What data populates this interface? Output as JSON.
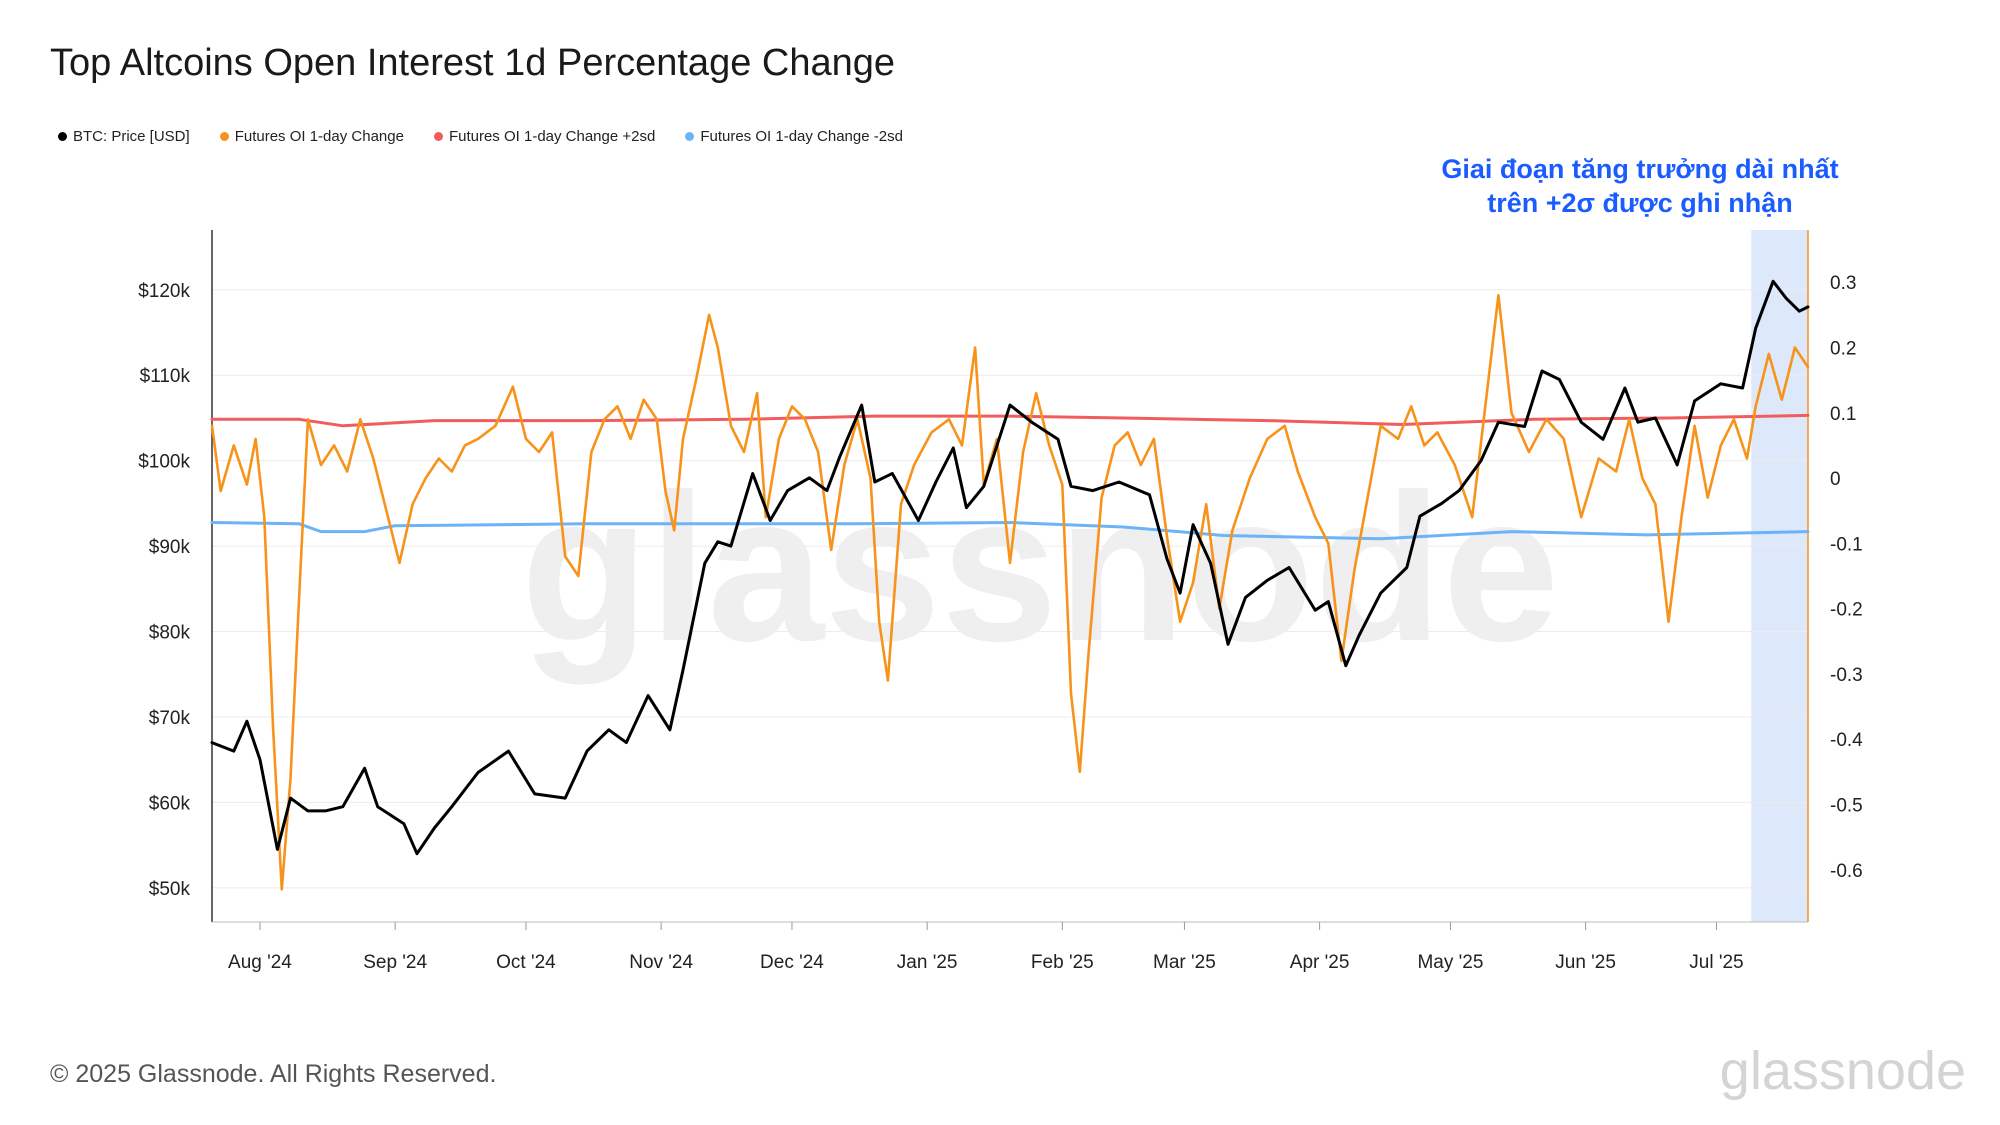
{
  "title": "Top Altcoins Open Interest 1d Percentage Change",
  "legend": [
    {
      "label": "BTC: Price [USD]",
      "color": "#000000"
    },
    {
      "label": "Futures OI 1-day Change",
      "color": "#f7931a"
    },
    {
      "label": "Futures OI 1-day Change +2sd",
      "color": "#f25c5c"
    },
    {
      "label": "Futures OI 1-day Change -2sd",
      "color": "#6cb4f7"
    }
  ],
  "annotation": {
    "line1": "Giai đoạn tăng trưởng dài nhất",
    "line2": "trên +2σ được ghi nhận"
  },
  "footer": "© 2025 Glassnode. All Rights Reserved.",
  "brand": "glassnode",
  "watermark": "glassnode",
  "chart_data": {
    "type": "line",
    "x_axis": {
      "ticks": [
        "Aug '24",
        "Sep '24",
        "Oct '24",
        "Nov '24",
        "Dec '24",
        "Jan '25",
        "Feb '25",
        "Mar '25",
        "Apr '25",
        "May '25",
        "Jun '25",
        "Jul '25"
      ],
      "range": [
        "2024-07-21",
        "2025-07-22"
      ]
    },
    "y_left": {
      "ticks": [
        "$50k",
        "$60k",
        "$70k",
        "$80k",
        "$90k",
        "$100k",
        "$110k",
        "$120k"
      ],
      "tick_values": [
        50000,
        60000,
        70000,
        80000,
        90000,
        100000,
        110000,
        120000
      ],
      "range": [
        46000,
        127000
      ]
    },
    "y_right": {
      "ticks": [
        "0.3",
        "0.2",
        "0.1",
        "0",
        "-0.1",
        "-0.2",
        "-0.3",
        "-0.4",
        "-0.5",
        "-0.6"
      ],
      "tick_values": [
        0.3,
        0.2,
        0.1,
        0,
        -0.1,
        -0.2,
        -0.3,
        -0.4,
        -0.5,
        -0.6
      ],
      "range": [
        -0.68,
        0.38
      ]
    },
    "highlight_region": {
      "from": "2025-07-09",
      "to": "2025-07-22",
      "color": "#dde8fb"
    },
    "grid": "horizontal",
    "series": [
      {
        "name": "BTC: Price [USD]",
        "axis": "left",
        "color": "#000000",
        "points": [
          [
            "2024-07-21",
            67000
          ],
          [
            "2024-07-26",
            66000
          ],
          [
            "2024-07-29",
            69500
          ],
          [
            "2024-08-01",
            65000
          ],
          [
            "2024-08-05",
            54500
          ],
          [
            "2024-08-08",
            60500
          ],
          [
            "2024-08-12",
            59000
          ],
          [
            "2024-08-16",
            59000
          ],
          [
            "2024-08-20",
            59500
          ],
          [
            "2024-08-25",
            64000
          ],
          [
            "2024-08-28",
            59500
          ],
          [
            "2024-09-03",
            57500
          ],
          [
            "2024-09-06",
            54000
          ],
          [
            "2024-09-10",
            57000
          ],
          [
            "2024-09-14",
            59500
          ],
          [
            "2024-09-20",
            63500
          ],
          [
            "2024-09-27",
            66000
          ],
          [
            "2024-10-03",
            61000
          ],
          [
            "2024-10-10",
            60500
          ],
          [
            "2024-10-15",
            66000
          ],
          [
            "2024-10-20",
            68500
          ],
          [
            "2024-10-24",
            67000
          ],
          [
            "2024-10-29",
            72500
          ],
          [
            "2024-11-03",
            68500
          ],
          [
            "2024-11-06",
            75500
          ],
          [
            "2024-11-11",
            88000
          ],
          [
            "2024-11-14",
            90500
          ],
          [
            "2024-11-17",
            90000
          ],
          [
            "2024-11-22",
            98500
          ],
          [
            "2024-11-26",
            93000
          ],
          [
            "2024-11-30",
            96500
          ],
          [
            "2024-12-05",
            98000
          ],
          [
            "2024-12-09",
            96500
          ],
          [
            "2024-12-12",
            100500
          ],
          [
            "2024-12-17",
            106500
          ],
          [
            "2024-12-20",
            97500
          ],
          [
            "2024-12-24",
            98500
          ],
          [
            "2024-12-30",
            93000
          ],
          [
            "2025-01-03",
            97500
          ],
          [
            "2025-01-07",
            101500
          ],
          [
            "2025-01-10",
            94500
          ],
          [
            "2025-01-14",
            97000
          ],
          [
            "2025-01-20",
            106500
          ],
          [
            "2025-01-25",
            104500
          ],
          [
            "2025-01-31",
            102500
          ],
          [
            "2025-02-03",
            97000
          ],
          [
            "2025-02-08",
            96500
          ],
          [
            "2025-02-14",
            97500
          ],
          [
            "2025-02-21",
            96000
          ],
          [
            "2025-02-25",
            88500
          ],
          [
            "2025-02-28",
            84500
          ],
          [
            "2025-03-03",
            92500
          ],
          [
            "2025-03-07",
            88000
          ],
          [
            "2025-03-11",
            78500
          ],
          [
            "2025-03-15",
            84000
          ],
          [
            "2025-03-20",
            86000
          ],
          [
            "2025-03-25",
            87500
          ],
          [
            "2025-03-31",
            82500
          ],
          [
            "2025-04-03",
            83500
          ],
          [
            "2025-04-07",
            76000
          ],
          [
            "2025-04-10",
            79500
          ],
          [
            "2025-04-15",
            84500
          ],
          [
            "2025-04-21",
            87500
          ],
          [
            "2025-04-24",
            93500
          ],
          [
            "2025-04-29",
            95000
          ],
          [
            "2025-05-03",
            96500
          ],
          [
            "2025-05-08",
            100000
          ],
          [
            "2025-05-12",
            104500
          ],
          [
            "2025-05-18",
            104000
          ],
          [
            "2025-05-22",
            110500
          ],
          [
            "2025-05-26",
            109500
          ],
          [
            "2025-05-31",
            104500
          ],
          [
            "2025-06-05",
            102500
          ],
          [
            "2025-06-10",
            108500
          ],
          [
            "2025-06-13",
            104500
          ],
          [
            "2025-06-17",
            105000
          ],
          [
            "2025-06-22",
            99500
          ],
          [
            "2025-06-26",
            107000
          ],
          [
            "2025-07-02",
            109000
          ],
          [
            "2025-07-07",
            108500
          ],
          [
            "2025-07-10",
            115500
          ],
          [
            "2025-07-14",
            121000
          ],
          [
            "2025-07-17",
            119000
          ],
          [
            "2025-07-20",
            117500
          ],
          [
            "2025-07-22",
            118000
          ]
        ]
      },
      {
        "name": "Futures OI 1-day Change",
        "axis": "right",
        "color": "#f7931a",
        "points": [
          [
            "2024-07-21",
            0.08
          ],
          [
            "2024-07-23",
            -0.02
          ],
          [
            "2024-07-26",
            0.05
          ],
          [
            "2024-07-29",
            -0.01
          ],
          [
            "2024-07-31",
            0.06
          ],
          [
            "2024-08-02",
            -0.06
          ],
          [
            "2024-08-04",
            -0.38
          ],
          [
            "2024-08-06",
            -0.63
          ],
          [
            "2024-08-08",
            -0.46
          ],
          [
            "2024-08-10",
            -0.18
          ],
          [
            "2024-08-12",
            0.09
          ],
          [
            "2024-08-15",
            0.02
          ],
          [
            "2024-08-18",
            0.05
          ],
          [
            "2024-08-21",
            0.01
          ],
          [
            "2024-08-24",
            0.09
          ],
          [
            "2024-08-27",
            0.03
          ],
          [
            "2024-08-30",
            -0.05
          ],
          [
            "2024-09-02",
            -0.13
          ],
          [
            "2024-09-05",
            -0.04
          ],
          [
            "2024-09-08",
            0.0
          ],
          [
            "2024-09-11",
            0.03
          ],
          [
            "2024-09-14",
            0.01
          ],
          [
            "2024-09-17",
            0.05
          ],
          [
            "2024-09-20",
            0.06
          ],
          [
            "2024-09-24",
            0.08
          ],
          [
            "2024-09-28",
            0.14
          ],
          [
            "2024-10-01",
            0.06
          ],
          [
            "2024-10-04",
            0.04
          ],
          [
            "2024-10-07",
            0.07
          ],
          [
            "2024-10-10",
            -0.12
          ],
          [
            "2024-10-13",
            -0.15
          ],
          [
            "2024-10-16",
            0.04
          ],
          [
            "2024-10-19",
            0.09
          ],
          [
            "2024-10-22",
            0.11
          ],
          [
            "2024-10-25",
            0.06
          ],
          [
            "2024-10-28",
            0.12
          ],
          [
            "2024-10-31",
            0.09
          ],
          [
            "2024-11-02",
            -0.02
          ],
          [
            "2024-11-04",
            -0.08
          ],
          [
            "2024-11-06",
            0.06
          ],
          [
            "2024-11-09",
            0.15
          ],
          [
            "2024-11-12",
            0.25
          ],
          [
            "2024-11-14",
            0.2
          ],
          [
            "2024-11-17",
            0.08
          ],
          [
            "2024-11-20",
            0.04
          ],
          [
            "2024-11-23",
            0.13
          ],
          [
            "2024-11-25",
            -0.06
          ],
          [
            "2024-11-28",
            0.06
          ],
          [
            "2024-12-01",
            0.11
          ],
          [
            "2024-12-04",
            0.09
          ],
          [
            "2024-12-07",
            0.04
          ],
          [
            "2024-12-10",
            -0.11
          ],
          [
            "2024-12-13",
            0.02
          ],
          [
            "2024-12-16",
            0.09
          ],
          [
            "2024-12-19",
            0.0
          ],
          [
            "2024-12-21",
            -0.22
          ],
          [
            "2024-12-23",
            -0.31
          ],
          [
            "2024-12-26",
            -0.04
          ],
          [
            "2024-12-29",
            0.02
          ],
          [
            "2025-01-02",
            0.07
          ],
          [
            "2025-01-06",
            0.09
          ],
          [
            "2025-01-09",
            0.05
          ],
          [
            "2025-01-12",
            0.2
          ],
          [
            "2025-01-14",
            -0.01
          ],
          [
            "2025-01-17",
            0.06
          ],
          [
            "2025-01-20",
            -0.13
          ],
          [
            "2025-01-23",
            0.04
          ],
          [
            "2025-01-26",
            0.13
          ],
          [
            "2025-01-29",
            0.05
          ],
          [
            "2025-02-01",
            -0.01
          ],
          [
            "2025-02-03",
            -0.33
          ],
          [
            "2025-02-05",
            -0.45
          ],
          [
            "2025-02-07",
            -0.27
          ],
          [
            "2025-02-10",
            -0.03
          ],
          [
            "2025-02-13",
            0.05
          ],
          [
            "2025-02-16",
            0.07
          ],
          [
            "2025-02-19",
            0.02
          ],
          [
            "2025-02-22",
            0.06
          ],
          [
            "2025-02-25",
            -0.09
          ],
          [
            "2025-02-28",
            -0.22
          ],
          [
            "2025-03-03",
            -0.16
          ],
          [
            "2025-03-06",
            -0.04
          ],
          [
            "2025-03-09",
            -0.2
          ],
          [
            "2025-03-12",
            -0.08
          ],
          [
            "2025-03-16",
            0.0
          ],
          [
            "2025-03-20",
            0.06
          ],
          [
            "2025-03-24",
            0.08
          ],
          [
            "2025-03-27",
            0.01
          ],
          [
            "2025-03-31",
            -0.06
          ],
          [
            "2025-04-03",
            -0.1
          ],
          [
            "2025-04-06",
            -0.28
          ],
          [
            "2025-04-09",
            -0.14
          ],
          [
            "2025-04-12",
            -0.03
          ],
          [
            "2025-04-15",
            0.08
          ],
          [
            "2025-04-19",
            0.06
          ],
          [
            "2025-04-22",
            0.11
          ],
          [
            "2025-04-25",
            0.05
          ],
          [
            "2025-04-28",
            0.07
          ],
          [
            "2025-05-02",
            0.02
          ],
          [
            "2025-05-06",
            -0.06
          ],
          [
            "2025-05-09",
            0.11
          ],
          [
            "2025-05-12",
            0.28
          ],
          [
            "2025-05-15",
            0.1
          ],
          [
            "2025-05-19",
            0.04
          ],
          [
            "2025-05-23",
            0.09
          ],
          [
            "2025-05-27",
            0.06
          ],
          [
            "2025-05-31",
            -0.06
          ],
          [
            "2025-06-04",
            0.03
          ],
          [
            "2025-06-08",
            0.01
          ],
          [
            "2025-06-11",
            0.09
          ],
          [
            "2025-06-14",
            0.0
          ],
          [
            "2025-06-17",
            -0.04
          ],
          [
            "2025-06-20",
            -0.22
          ],
          [
            "2025-06-23",
            -0.06
          ],
          [
            "2025-06-26",
            0.08
          ],
          [
            "2025-06-29",
            -0.03
          ],
          [
            "2025-07-02",
            0.05
          ],
          [
            "2025-07-05",
            0.09
          ],
          [
            "2025-07-08",
            0.03
          ],
          [
            "2025-07-10",
            0.11
          ],
          [
            "2025-07-13",
            0.19
          ],
          [
            "2025-07-16",
            0.12
          ],
          [
            "2025-07-19",
            0.2
          ],
          [
            "2025-07-22",
            0.17
          ]
        ]
      },
      {
        "name": "Futures OI 1-day Change +2sd",
        "axis": "right",
        "color": "#f25c5c",
        "points": [
          [
            "2024-07-21",
            0.09
          ],
          [
            "2024-08-10",
            0.09
          ],
          [
            "2024-08-20",
            0.08
          ],
          [
            "2024-09-10",
            0.088
          ],
          [
            "2024-10-15",
            0.088
          ],
          [
            "2024-11-20",
            0.09
          ],
          [
            "2024-12-20",
            0.095
          ],
          [
            "2025-01-20",
            0.095
          ],
          [
            "2025-02-15",
            0.092
          ],
          [
            "2025-03-20",
            0.088
          ],
          [
            "2025-04-20",
            0.082
          ],
          [
            "2025-05-20",
            0.09
          ],
          [
            "2025-06-20",
            0.092
          ],
          [
            "2025-07-22",
            0.096
          ]
        ]
      },
      {
        "name": "Futures OI 1-day Change -2sd",
        "axis": "right",
        "color": "#6cb4f7",
        "points": [
          [
            "2024-07-21",
            -0.068
          ],
          [
            "2024-08-10",
            -0.07
          ],
          [
            "2024-08-15",
            -0.082
          ],
          [
            "2024-08-25",
            -0.082
          ],
          [
            "2024-09-01",
            -0.073
          ],
          [
            "2024-10-15",
            -0.07
          ],
          [
            "2024-12-15",
            -0.07
          ],
          [
            "2025-01-20",
            -0.068
          ],
          [
            "2025-02-15",
            -0.075
          ],
          [
            "2025-03-10",
            -0.088
          ],
          [
            "2025-04-15",
            -0.093
          ],
          [
            "2025-05-15",
            -0.082
          ],
          [
            "2025-06-15",
            -0.087
          ],
          [
            "2025-07-22",
            -0.082
          ]
        ]
      }
    ]
  }
}
